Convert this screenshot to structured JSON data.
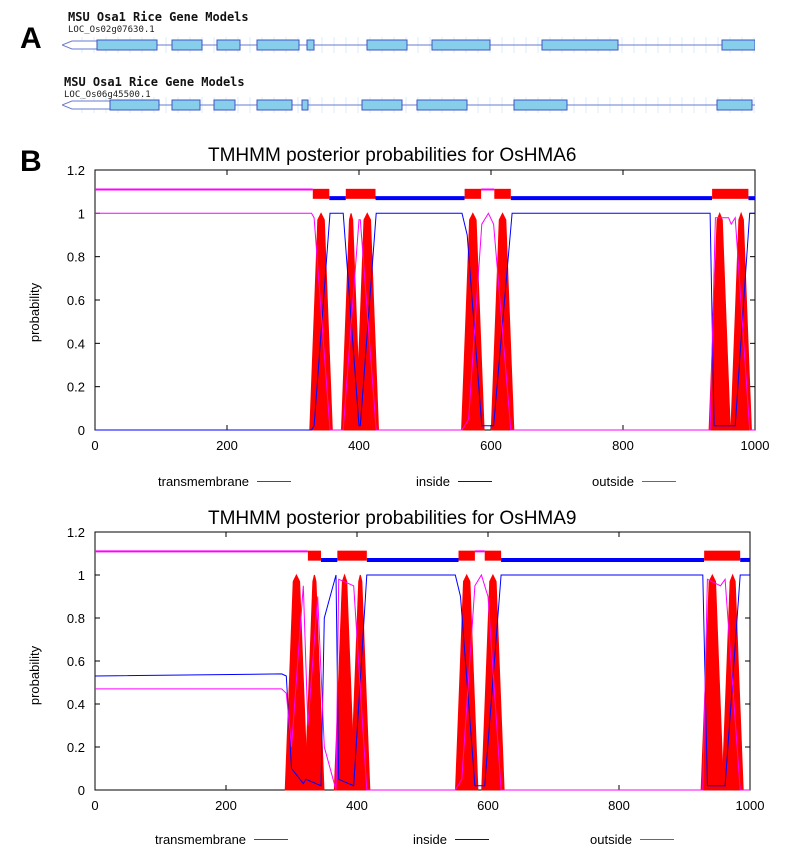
{
  "panels": {
    "a_label": "A",
    "b_label": "B"
  },
  "gene_models": [
    {
      "title": "MSU Osa1 Rice Gene Models",
      "locus": "LOC_Os02g07630.1",
      "exon_color": "#87ceeb"
    },
    {
      "title": "MSU Osa1 Rice Gene Models",
      "locus": "LOC_Os06g45500.1",
      "exon_color": "#87ceeb"
    }
  ],
  "legend": {
    "transmembrane": "transmembrane",
    "inside": "inside",
    "outside": "outside"
  },
  "colors": {
    "transmembrane": "#ff0000",
    "inside": "#0000ff",
    "outside": "#ff00ff"
  },
  "chart_data": [
    {
      "type": "line",
      "title": "TMHMM posterior probabilities for OsHMA6",
      "xlabel": "",
      "ylabel": "probability",
      "xlim": [
        0,
        1000
      ],
      "ylim": [
        0,
        1.2
      ],
      "xticks": [
        0,
        200,
        400,
        600,
        800,
        1000
      ],
      "yticks": [
        0,
        0.2,
        0.4,
        0.6,
        0.8,
        1,
        1.2
      ],
      "tm_segments": [
        [
          330,
          355
        ],
        [
          378,
          398
        ],
        [
          400,
          425
        ],
        [
          560,
          585
        ],
        [
          605,
          630
        ],
        [
          935,
          958
        ],
        [
          968,
          990
        ]
      ],
      "series": [
        {
          "name": "transmembrane",
          "kind": "tm"
        },
        {
          "name": "inside",
          "x": [
            0,
            328,
            332,
            356,
            376,
            400,
            402,
            426,
            556,
            564,
            586,
            600,
            604,
            632,
            932,
            938,
            960,
            964,
            970,
            992,
            1000
          ],
          "y": [
            0,
            0,
            0.02,
            1.0,
            1.0,
            0.02,
            0.02,
            1.0,
            1.0,
            0.9,
            0.02,
            0.02,
            0.02,
            1.0,
            1.0,
            0.02,
            0.02,
            0.02,
            0.02,
            1.0,
            1.0
          ]
        },
        {
          "name": "outside",
          "x": [
            0,
            328,
            332,
            356,
            376,
            400,
            402,
            426,
            556,
            566,
            586,
            596,
            604,
            630,
            932,
            940,
            960,
            964,
            970,
            992,
            1000
          ],
          "y": [
            1.0,
            1.0,
            0.98,
            0,
            0,
            0.97,
            0.97,
            0,
            0,
            0.05,
            0.95,
            1.0,
            0.95,
            0,
            0,
            0.98,
            0.98,
            0.95,
            0.98,
            0,
            0
          ]
        }
      ],
      "topology": {
        "inside_ranges": [
          [
            355,
            380
          ],
          [
            425,
            560
          ],
          [
            630,
            935
          ],
          [
            990,
            1000
          ]
        ],
        "outside_ranges": [
          [
            0,
            330
          ],
          [
            585,
            605
          ]
        ],
        "tm_ranges": [
          [
            330,
            355
          ],
          [
            380,
            425
          ],
          [
            560,
            585
          ],
          [
            605,
            630
          ],
          [
            935,
            990
          ]
        ]
      }
    },
    {
      "type": "line",
      "title": "TMHMM posterior probabilities for OsHMA9",
      "xlabel": "",
      "ylabel": "probability",
      "xlim": [
        0,
        1000
      ],
      "ylim": [
        0,
        1.2
      ],
      "xticks": [
        0,
        200,
        400,
        600,
        800,
        1000
      ],
      "yticks": [
        0,
        0.2,
        0.4,
        0.6,
        0.8,
        1,
        1.2
      ],
      "tm_segments": [
        [
          295,
          320
        ],
        [
          325,
          345
        ],
        [
          370,
          392
        ],
        [
          395,
          415
        ],
        [
          555,
          580
        ],
        [
          595,
          620
        ],
        [
          930,
          955
        ],
        [
          962,
          985
        ]
      ],
      "series": [
        {
          "name": "transmembrane",
          "kind": "tm"
        },
        {
          "name": "inside",
          "x": [
            0,
            285,
            292,
            300,
            318,
            322,
            345,
            350,
            368,
            372,
            395,
            415,
            550,
            558,
            580,
            595,
            620,
            928,
            935,
            955,
            962,
            985,
            1000
          ],
          "y": [
            0.53,
            0.54,
            0.53,
            0.1,
            0.03,
            0.05,
            0.02,
            0.8,
            1.0,
            0.05,
            0.02,
            1.0,
            1.0,
            0.9,
            0.02,
            0.02,
            1.0,
            1.0,
            0.02,
            0.02,
            0.02,
            1.0,
            1.0
          ]
        },
        {
          "name": "outside",
          "x": [
            0,
            285,
            292,
            300,
            318,
            325,
            340,
            350,
            368,
            372,
            395,
            415,
            550,
            560,
            580,
            590,
            600,
            620,
            928,
            935,
            955,
            962,
            985,
            1000
          ],
          "y": [
            0.47,
            0.47,
            0.45,
            0.2,
            0.95,
            0.3,
            0.9,
            0.2,
            0,
            0.98,
            0.95,
            0,
            0,
            0.05,
            0.95,
            1.0,
            0.9,
            0,
            0,
            0.98,
            0.95,
            0.98,
            0,
            0
          ]
        }
      ],
      "topology": {
        "inside_ranges": [
          [
            345,
            370
          ],
          [
            415,
            555
          ],
          [
            620,
            930
          ],
          [
            985,
            1000
          ]
        ],
        "outside_ranges": [
          [
            0,
            325
          ],
          [
            580,
            595
          ]
        ],
        "tm_ranges": [
          [
            325,
            345
          ],
          [
            370,
            415
          ],
          [
            555,
            580
          ],
          [
            595,
            620
          ],
          [
            930,
            985
          ]
        ]
      }
    }
  ]
}
